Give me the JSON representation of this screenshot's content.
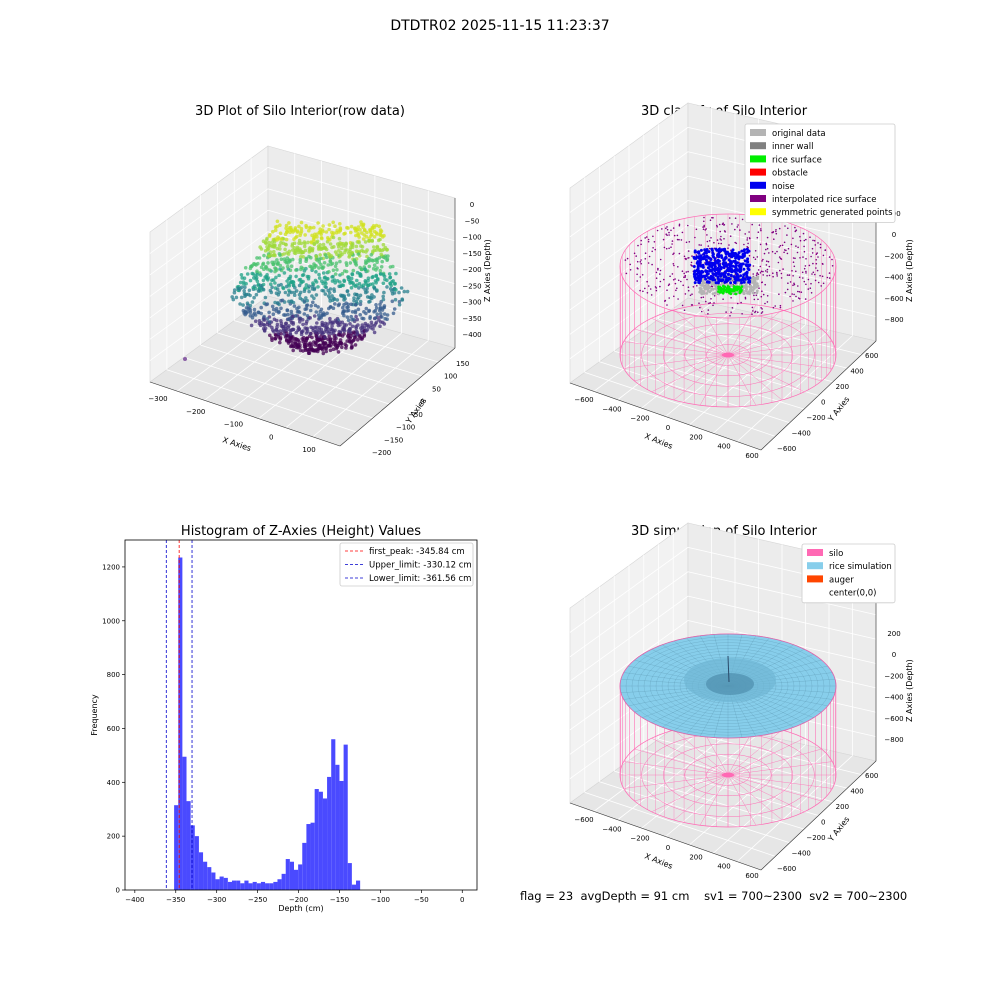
{
  "suptitle": "DTDTR02 2025-11-15 11:23:37",
  "panels": {
    "raw": {
      "title": "3D Plot of Silo Interior(row data)",
      "xlabel": "X Axies",
      "ylabel": "Y Axies",
      "zlabel": "Z Axies (Depth)",
      "x_ticks": [
        "−300",
        "−200",
        "−100",
        "0",
        "100"
      ],
      "y_ticks": [
        "150",
        "100",
        "50",
        "0",
        "−50",
        "−100",
        "−150",
        "−200"
      ],
      "z_ticks": [
        "0",
        "−50",
        "−100",
        "−150",
        "−200",
        "−250",
        "−300",
        "−350",
        "−400"
      ]
    },
    "classify": {
      "title": "3D classify of Silo Interior",
      "xlabel": "X Axies",
      "ylabel": "Y Axies",
      "zlabel": "Z Axies (Depth)",
      "x_ticks": [
        "−600",
        "−400",
        "−200",
        "0",
        "200",
        "400",
        "600"
      ],
      "y_ticks": [
        "600",
        "400",
        "200",
        "0",
        "−200",
        "−400",
        "−600"
      ],
      "z_ticks": [
        "200",
        "0",
        "−200",
        "−400",
        "−600",
        "−800"
      ],
      "legend": [
        {
          "label": "original data",
          "color": "#b4b4b4"
        },
        {
          "label": "inner wall",
          "color": "#808080"
        },
        {
          "label": "rice surface",
          "color": "#00ee00"
        },
        {
          "label": "obstacle",
          "color": "#ff0000"
        },
        {
          "label": "noise",
          "color": "#0000ee"
        },
        {
          "label": "interpolated rice surface",
          "color": "#800080"
        },
        {
          "label": "symmetric generated points",
          "color": "#ffff00"
        }
      ]
    },
    "simulation": {
      "title": "3D simulation of Silo Interior",
      "xlabel": "X Axies",
      "ylabel": "Y Axies",
      "zlabel": "Z Axies (Depth)",
      "x_ticks": [
        "−600",
        "−400",
        "−200",
        "0",
        "200",
        "400",
        "600"
      ],
      "y_ticks": [
        "600",
        "400",
        "200",
        "0",
        "−200",
        "−400",
        "−600"
      ],
      "z_ticks": [
        "200",
        "0",
        "−200",
        "−400",
        "−600",
        "−800"
      ],
      "legend": [
        {
          "label": "silo",
          "color": "#ff69b4"
        },
        {
          "label": "rice simulation",
          "color": "#87ceeb"
        },
        {
          "label": "auger",
          "color": "#ff4500"
        },
        {
          "label": "center(0,0)",
          "color": ""
        }
      ]
    }
  },
  "chart_data": [
    {
      "type": "scatter",
      "title": "3D Plot of Silo Interior(row data)",
      "xlabel": "X Axies",
      "ylabel": "Y Axies",
      "zlabel": "Z Axies (Depth)",
      "xlim": [
        -330,
        170
      ],
      "ylim": [
        -210,
        170
      ],
      "zlim": [
        -420,
        10
      ],
      "colormap": "viridis",
      "grid": true
    },
    {
      "type": "scatter",
      "title": "3D classify of Silo Interior",
      "xlabel": "X Axies",
      "ylabel": "Y Axies",
      "zlabel": "Z Axies (Depth)",
      "xlim": [
        -650,
        650
      ],
      "ylim": [
        -650,
        650
      ],
      "zlim": [
        -900,
        250
      ],
      "legend_position": "top-right",
      "grid": true
    },
    {
      "type": "bar",
      "title": "Histogram of Z-Axies (Height) Values",
      "xlabel": "Depth (cm)",
      "ylabel": "Frequency",
      "xlim": [
        -412,
        18
      ],
      "ylim": [
        0,
        1300
      ],
      "x_ticks": [
        "−400",
        "−350",
        "−300",
        "−250",
        "−200",
        "−150",
        "−100",
        "−50",
        "0"
      ],
      "y_ticks": [
        "0",
        "200",
        "400",
        "600",
        "800",
        "1000",
        "1200"
      ],
      "bin_start": -352,
      "bin_width": 5.05,
      "values": [
        315,
        1235,
        495,
        330,
        240,
        200,
        140,
        105,
        85,
        65,
        40,
        50,
        45,
        30,
        35,
        35,
        25,
        35,
        25,
        30,
        25,
        30,
        25,
        25,
        30,
        40,
        60,
        115,
        105,
        75,
        95,
        175,
        245,
        250,
        375,
        365,
        340,
        420,
        560,
        465,
        405,
        540,
        100,
        20,
        35
      ],
      "bar_color": "#4040ff",
      "legend_position": "top-right",
      "lines": [
        {
          "label": "first_peak: -345.84 cm",
          "x": -345.84,
          "color": "#ff0000"
        },
        {
          "label": "Upper_limit: -330.12 cm",
          "x": -330.12,
          "color": "#0000cc"
        },
        {
          "label": "Lower_limit: -361.56 cm",
          "x": -361.56,
          "color": "#0000cc"
        }
      ]
    },
    {
      "type": "scatter",
      "title": "3D simulation of Silo Interior",
      "xlabel": "X Axies",
      "ylabel": "Y Axies",
      "zlabel": "Z Axies (Depth)",
      "xlim": [
        -650,
        650
      ],
      "ylim": [
        -650,
        650
      ],
      "zlim": [
        -900,
        350
      ],
      "legend_position": "top-right",
      "grid": true
    }
  ],
  "footer": {
    "flag": "flag = 23",
    "avg_depth": "avgDepth = 91 cm",
    "sv1": "sv1 = 700~2300",
    "sv2": "sv2 = 700~2300"
  }
}
